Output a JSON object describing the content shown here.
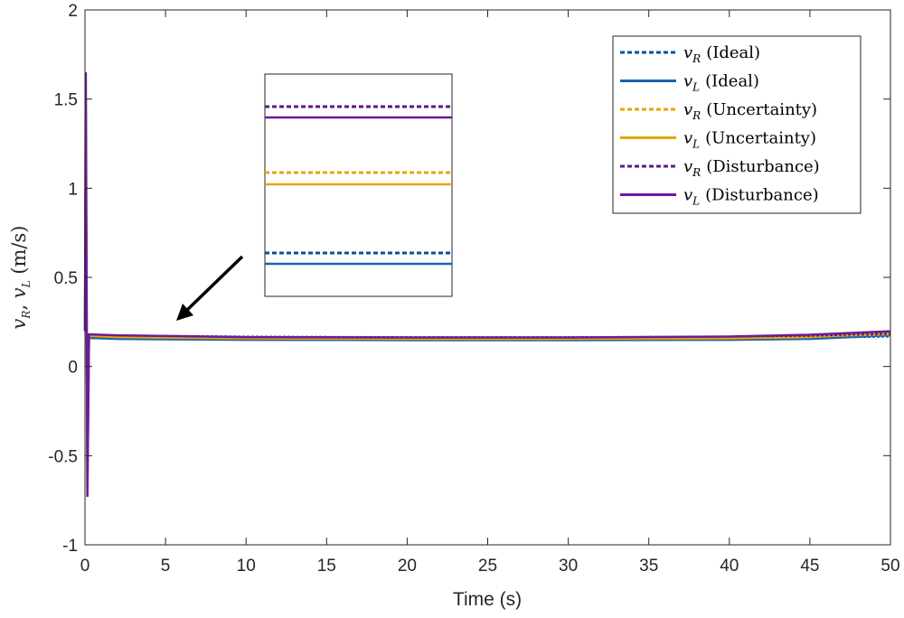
{
  "chart_data": {
    "type": "line",
    "xlabel": "Time (s)",
    "ylabel": {
      "v1": "v",
      "s1": "R",
      "sep": ", ",
      "v2": "v",
      "s2": "L",
      "units": " (m/s)"
    },
    "xlim": [
      0,
      50
    ],
    "ylim": [
      -1,
      2
    ],
    "x_ticks": [
      0,
      5,
      10,
      15,
      20,
      25,
      30,
      35,
      40,
      45,
      50
    ],
    "x_tick_labels": [
      "0",
      "5",
      "10",
      "15",
      "20",
      "25",
      "30",
      "35",
      "40",
      "45",
      "50"
    ],
    "y_ticks": [
      -1,
      -0.5,
      0,
      0.5,
      1,
      1.5,
      2
    ],
    "y_tick_labels": [
      "-1",
      "-0.5",
      "0",
      "0.5",
      "1",
      "1.5",
      "2"
    ],
    "grid": false,
    "legend_position": "top-right",
    "series": [
      {
        "name": "vR (Ideal)",
        "var": "v",
        "sub": "R",
        "label": "(Ideal)",
        "style": "dotted",
        "color": "#0b4f9c",
        "x": [
          0,
          0.05,
          0.15,
          0.25,
          0.4,
          2,
          10,
          20,
          30,
          40,
          45,
          50
        ],
        "y": [
          0.2,
          1.3,
          -0.55,
          0.165,
          0.17,
          0.165,
          0.158,
          0.155,
          0.155,
          0.157,
          0.16,
          0.168
        ]
      },
      {
        "name": "vL (Ideal)",
        "var": "v",
        "sub": "L",
        "label": "(Ideal)",
        "style": "solid",
        "color": "#1a64b0",
        "x": [
          0,
          0.05,
          0.15,
          0.25,
          0.4,
          2,
          10,
          20,
          30,
          40,
          45,
          50
        ],
        "y": [
          0.2,
          1.2,
          -0.5,
          0.16,
          0.16,
          0.155,
          0.15,
          0.148,
          0.148,
          0.15,
          0.155,
          0.175
        ]
      },
      {
        "name": "vR (Uncertainty)",
        "var": "v",
        "sub": "R",
        "label": "(Uncertainty)",
        "style": "dotted",
        "color": "#e8a400",
        "x": [
          0,
          0.05,
          0.15,
          0.25,
          0.4,
          2,
          10,
          20,
          30,
          40,
          45,
          50
        ],
        "y": [
          0.2,
          1.55,
          -0.7,
          0.175,
          0.175,
          0.17,
          0.163,
          0.16,
          0.16,
          0.162,
          0.166,
          0.18
        ]
      },
      {
        "name": "vL (Uncertainty)",
        "var": "v",
        "sub": "L",
        "label": "(Uncertainty)",
        "style": "solid",
        "color": "#e8a400",
        "x": [
          0,
          0.05,
          0.15,
          0.25,
          0.4,
          2,
          10,
          20,
          30,
          40,
          45,
          50
        ],
        "y": [
          0.2,
          1.5,
          -0.68,
          0.17,
          0.172,
          0.165,
          0.158,
          0.155,
          0.155,
          0.158,
          0.165,
          0.19
        ]
      },
      {
        "name": "vR (Disturbance)",
        "var": "v",
        "sub": "R",
        "label": "(Disturbance)",
        "style": "dotted",
        "color": "#5c1a8a",
        "x": [
          0,
          0.05,
          0.15,
          0.25,
          0.4,
          2,
          10,
          20,
          30,
          40,
          45,
          50
        ],
        "y": [
          0.2,
          1.65,
          -0.73,
          0.18,
          0.18,
          0.175,
          0.168,
          0.165,
          0.165,
          0.168,
          0.172,
          0.185
        ]
      },
      {
        "name": "vL (Disturbance)",
        "var": "v",
        "sub": "L",
        "label": "(Disturbance)",
        "style": "solid",
        "color": "#6a1b9a",
        "x": [
          0,
          0.05,
          0.15,
          0.25,
          0.4,
          2,
          10,
          20,
          30,
          40,
          45,
          50
        ],
        "y": [
          0.2,
          1.65,
          -0.73,
          0.18,
          0.18,
          0.175,
          0.165,
          0.163,
          0.163,
          0.168,
          0.178,
          0.198
        ]
      }
    ],
    "inset_annotation": {
      "description": "zoom inset",
      "pointer_target": {
        "x": 5.5,
        "y": 0.26
      },
      "pointer_tail": {
        "x": 10,
        "y": 0.62
      }
    }
  }
}
